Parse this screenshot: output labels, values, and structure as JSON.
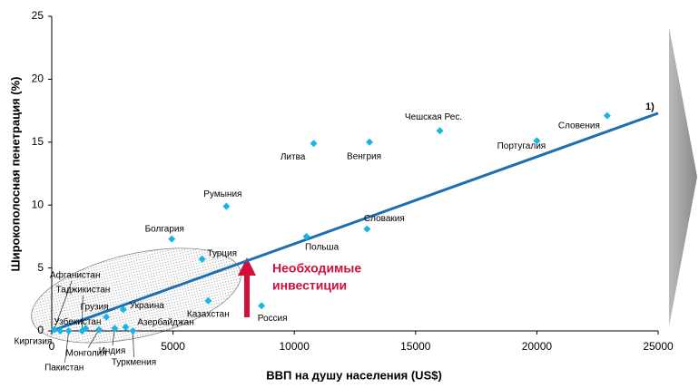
{
  "chart_data": {
    "type": "scatter",
    "xlabel": "ВВП на душу населения (US$)",
    "ylabel": "Широкополосная пенетрация (%)",
    "xlim": [
      0,
      25000
    ],
    "xticks": [
      0,
      5000,
      10000,
      15000,
      20000,
      25000
    ],
    "ylim": [
      0,
      25
    ],
    "yticks": [
      0,
      5,
      10,
      15,
      20,
      25
    ],
    "color": "#19b4e6",
    "point_labels": [
      "Словения",
      "Португалия",
      "Чешская Рес.",
      "Венгрия",
      "Литва",
      "Румыния",
      "Словакия",
      "Польша",
      "Болгария",
      "Турция",
      "Казахстан",
      "Россия",
      "Украина",
      "Грузия",
      "Азербайджан",
      "Туркмения",
      "Индия",
      "Монголия",
      "Узбекистан",
      "Таджикистан",
      "Пакистан",
      "Киргизия",
      "Афганистан"
    ],
    "x": [
      22900,
      20000,
      16000,
      13100,
      10800,
      7200,
      13000,
      10500,
      4950,
      6200,
      6450,
      8650,
      2950,
      2250,
      3050,
      3350,
      2600,
      1950,
      1400,
      1250,
      700,
      350,
      100
    ],
    "values": [
      17.1,
      15.1,
      15.9,
      15.0,
      14.9,
      9.9,
      8.1,
      7.5,
      7.3,
      5.7,
      2.4,
      2.0,
      1.7,
      1.1,
      0.3,
      0.0,
      0.2,
      0.1,
      0.2,
      0.0,
      0.0,
      0.0,
      0.1
    ],
    "trend_line": {
      "label": "1)",
      "color": "#1f6fb0",
      "x": [
        0,
        25000
      ],
      "values": [
        0,
        17.3
      ]
    },
    "annotation": [
      "Необходимые",
      "инвестиции"
    ]
  }
}
